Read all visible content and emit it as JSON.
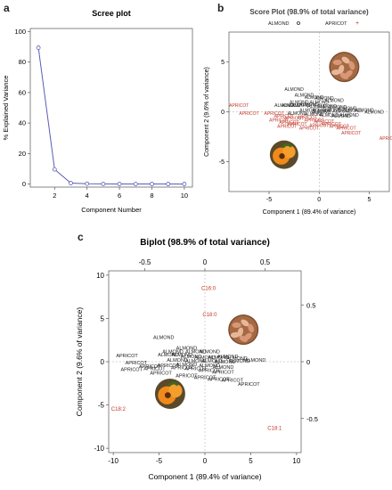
{
  "panels": {
    "a": "a",
    "b": "b",
    "c": "c"
  },
  "chart_data": [
    {
      "id": "scree",
      "type": "line",
      "title": "Scree plot",
      "xlabel": "Component Number",
      "ylabel": "% Explained Variance",
      "x": [
        1,
        2,
        3,
        4,
        5,
        6,
        7,
        8,
        9,
        10
      ],
      "y": [
        89.4,
        9.6,
        0.6,
        0.2,
        0.1,
        0.05,
        0.03,
        0.02,
        0.01,
        0.0
      ],
      "xlim": [
        0.5,
        10.5
      ],
      "ylim": [
        -2,
        102
      ],
      "xticks": [
        2,
        4,
        6,
        8,
        10
      ],
      "yticks": [
        0,
        20,
        40,
        60,
        80,
        100
      ],
      "color": "#5b5bb8"
    },
    {
      "id": "score",
      "type": "scatter",
      "title": "Score Plot (98.9% of total variance)",
      "xlabel": "Component 1 (89.4% of variance)",
      "ylabel": "Component 2 (9.6% of variance)",
      "xlim": [
        -9,
        7
      ],
      "ylim": [
        -8,
        8
      ],
      "xticks": [
        -5,
        0,
        5
      ],
      "yticks": [
        -5,
        0,
        5
      ],
      "legend": [
        {
          "label": "ALMOND",
          "color": "#222222",
          "marker": "circle"
        },
        {
          "label": "APRICOT",
          "color": "#c0392b",
          "marker": "plus"
        }
      ],
      "series": [
        {
          "name": "ALMOND",
          "color": "#222222",
          "points": [
            [
              -2.5,
              2.1
            ],
            [
              -1.5,
              1.5
            ],
            [
              -0.5,
              1.3
            ],
            [
              0.5,
              1.2
            ],
            [
              1.5,
              1.0
            ],
            [
              0.0,
              0.8
            ],
            [
              -1.0,
              0.6
            ],
            [
              -2.0,
              0.8
            ],
            [
              -2.8,
              0.5
            ],
            [
              -1.8,
              0.5
            ],
            [
              -0.2,
              0.4
            ],
            [
              0.8,
              0.4
            ],
            [
              1.8,
              0.3
            ],
            [
              2.8,
              0.2
            ],
            [
              -3.5,
              0.5
            ],
            [
              -1.0,
              0.0
            ],
            [
              0.3,
              0.0
            ],
            [
              1.2,
              0.0
            ],
            [
              2.3,
              -0.1
            ],
            [
              3.3,
              0.0
            ],
            [
              4.5,
              0.0
            ],
            [
              5.5,
              -0.2
            ],
            [
              -0.5,
              -0.4
            ],
            [
              1.0,
              -0.5
            ],
            [
              2.2,
              -0.6
            ],
            [
              3.0,
              -0.5
            ],
            [
              -2.2,
              -0.3
            ],
            [
              0.2,
              -0.2
            ]
          ]
        },
        {
          "name": "APRICOT",
          "color": "#c0392b",
          "points": [
            [
              -8.0,
              0.5
            ],
            [
              -7.0,
              -0.3
            ],
            [
              -4.5,
              -0.3
            ],
            [
              -3.5,
              -0.6
            ],
            [
              -2.5,
              -0.8
            ],
            [
              -4.0,
              -1.0
            ],
            [
              -3.0,
              -1.2
            ],
            [
              -2.2,
              -1.4
            ],
            [
              -1.2,
              -0.7
            ],
            [
              -0.5,
              -1.0
            ],
            [
              0.5,
              -1.1
            ],
            [
              1.2,
              -1.4
            ],
            [
              2.0,
              -1.6
            ],
            [
              2.7,
              -1.8
            ],
            [
              3.2,
              -2.3
            ],
            [
              0.0,
              -1.5
            ],
            [
              -1.0,
              -1.8
            ],
            [
              -3.2,
              -1.6
            ],
            [
              7.0,
              -2.8
            ]
          ]
        }
      ]
    },
    {
      "id": "biplot",
      "type": "scatter",
      "title": "Biplot (98.9% of total variance)",
      "xlabel": "Component 1 (89.4% of variance)",
      "ylabel": "Component 2 (9.6% of variance)",
      "xlim": [
        -10.5,
        10.5
      ],
      "ylim": [
        -10.5,
        10.5
      ],
      "xticks": [
        -10,
        -5,
        0,
        5,
        10
      ],
      "yticks": [
        -10,
        -5,
        0,
        5,
        10
      ],
      "top_xlim": [
        -0.8,
        0.8
      ],
      "top_xticks": [
        -0.5,
        0,
        0.5
      ],
      "right_ylim": [
        -0.8,
        0.8
      ],
      "right_yticks": [
        -0.5,
        0,
        0.5
      ],
      "series": [
        {
          "name": "ALMOND",
          "color": "#222222",
          "labels": [
            [
              -4.5,
              2.6
            ],
            [
              -2.0,
              1.4
            ],
            [
              -3.5,
              1.0
            ],
            [
              -1.0,
              1.0
            ],
            [
              0.5,
              1.0
            ],
            [
              -4.0,
              0.6
            ],
            [
              -2.5,
              0.6
            ],
            [
              -1.5,
              0.4
            ],
            [
              0.0,
              0.3
            ],
            [
              1.5,
              0.3
            ],
            [
              2.5,
              0.4
            ],
            [
              3.5,
              0.2
            ],
            [
              -3.0,
              0.0
            ],
            [
              -1.0,
              -0.1
            ],
            [
              0.8,
              -0.1
            ],
            [
              2.2,
              -0.2
            ],
            [
              3.8,
              -0.1
            ],
            [
              5.5,
              0.0
            ],
            [
              -2.0,
              -0.5
            ],
            [
              0.5,
              -0.6
            ],
            [
              2.0,
              -0.8
            ]
          ]
        },
        {
          "name": "APRICOT",
          "color": "#222222",
          "labels": [
            [
              -8.5,
              0.5
            ],
            [
              -7.5,
              -0.3
            ],
            [
              -6.0,
              -0.7
            ],
            [
              -8.0,
              -1.1
            ],
            [
              -5.5,
              -1.0
            ],
            [
              -4.0,
              -0.6
            ],
            [
              -2.5,
              -0.9
            ],
            [
              -1.0,
              -1.0
            ],
            [
              0.5,
              -1.2
            ],
            [
              2.0,
              -1.4
            ],
            [
              -2.0,
              -1.8
            ],
            [
              0.0,
              -2.0
            ],
            [
              1.5,
              -2.2
            ],
            [
              3.0,
              -2.3
            ],
            [
              -4.8,
              -1.5
            ],
            [
              4.8,
              -2.8
            ]
          ]
        }
      ],
      "loadings": [
        {
          "label": "C16:0",
          "x": 0.03,
          "y": 0.63
        },
        {
          "label": "C18:0",
          "x": 0.04,
          "y": 0.4
        },
        {
          "label": "C18:2",
          "x": -0.72,
          "y": -0.43
        },
        {
          "label": "C18:1",
          "x": 0.58,
          "y": -0.6
        }
      ],
      "loading_color": "#c0392b"
    }
  ]
}
